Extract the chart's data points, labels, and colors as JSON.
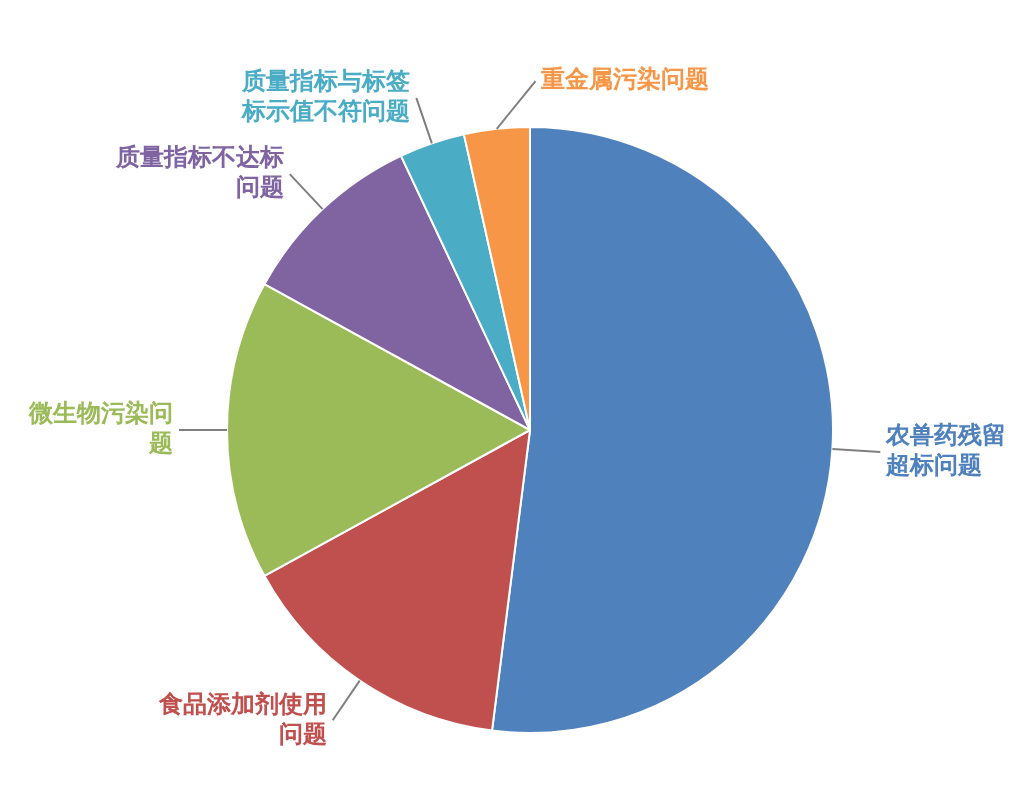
{
  "chart_data": {
    "type": "pie",
    "categories": [
      "农兽药残留超标问题",
      "食品添加剂使用问题",
      "微生物污染问题",
      "质量指标不达标问题",
      "质量指标与标签标示值不符问题",
      "重金属污染问题"
    ],
    "values": [
      52,
      15,
      16,
      10,
      3.5,
      3.5
    ],
    "colors": [
      "#4f81bd",
      "#c0504d",
      "#9bbb59",
      "#8064a2",
      "#4bacc6",
      "#f79646"
    ],
    "legend": false
  }
}
